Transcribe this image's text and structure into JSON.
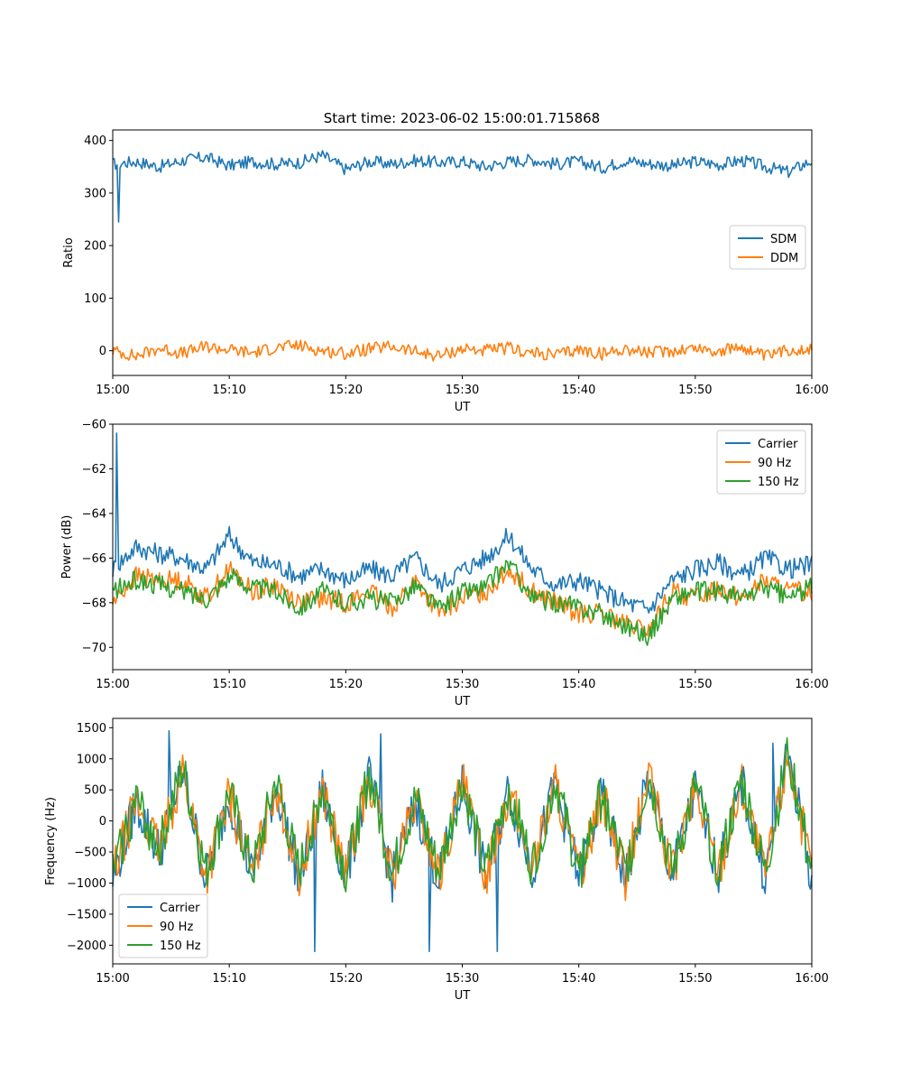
{
  "figure": {
    "title": "Start time: 2023-06-02 15:00:01.715868"
  },
  "colors": {
    "blue": "#1f77b4",
    "orange": "#ff7f0e",
    "green": "#2ca02c"
  },
  "chart_data": [
    {
      "type": "line",
      "title": "Start time: 2023-06-02 15:00:01.715868",
      "xlabel": "UT",
      "ylabel": "Ratio",
      "xlim": [
        "15:00",
        "16:00"
      ],
      "ylim": [
        -47,
        420
      ],
      "x_ticks": [
        "15:00",
        "15:10",
        "15:20",
        "15:30",
        "15:40",
        "15:50",
        "16:00"
      ],
      "y_ticks": [
        0,
        100,
        200,
        300,
        400
      ],
      "grid": false,
      "legend": "center-right",
      "x": [
        "15:00",
        "15:02",
        "15:04",
        "15:06",
        "15:08",
        "15:10",
        "15:12",
        "15:14",
        "15:16",
        "15:18",
        "15:20",
        "15:22",
        "15:24",
        "15:26",
        "15:28",
        "15:30",
        "15:32",
        "15:34",
        "15:36",
        "15:38",
        "15:40",
        "15:42",
        "15:44",
        "15:46",
        "15:48",
        "15:50",
        "15:52",
        "15:54",
        "15:56",
        "15:58",
        "16:00"
      ],
      "series": [
        {
          "name": "SDM",
          "color": "blue",
          "values": [
            355,
            360,
            350,
            362,
            368,
            352,
            360,
            355,
            358,
            372,
            345,
            360,
            355,
            362,
            358,
            360,
            350,
            360,
            364,
            355,
            360,
            348,
            362,
            356,
            352,
            360,
            354,
            362,
            350,
            340,
            362
          ],
          "notes": [
            {
              "x": "15:00:30",
              "y": 245
            }
          ]
        },
        {
          "name": "DDM",
          "color": "orange",
          "values": [
            0,
            -10,
            5,
            -5,
            8,
            2,
            -4,
            6,
            10,
            0,
            -5,
            3,
            8,
            -2,
            -10,
            4,
            0,
            5,
            -5,
            -8,
            2,
            -6,
            4,
            -4,
            0,
            6,
            -2,
            8,
            -12,
            2,
            4
          ]
        }
      ]
    },
    {
      "type": "line",
      "xlabel": "UT",
      "ylabel": "Power (dB)",
      "xlim": [
        "15:00",
        "16:00"
      ],
      "ylim": [
        -71,
        -60
      ],
      "x_ticks": [
        "15:00",
        "15:10",
        "15:20",
        "15:30",
        "15:40",
        "15:50",
        "16:00"
      ],
      "y_ticks": [
        -70,
        -68,
        -66,
        -64,
        -62,
        -60
      ],
      "grid": false,
      "legend": "top-right",
      "x": [
        "15:00",
        "15:02",
        "15:04",
        "15:06",
        "15:08",
        "15:10",
        "15:12",
        "15:14",
        "15:16",
        "15:18",
        "15:20",
        "15:22",
        "15:24",
        "15:26",
        "15:28",
        "15:30",
        "15:32",
        "15:34",
        "15:36",
        "15:38",
        "15:40",
        "15:42",
        "15:44",
        "15:46",
        "15:48",
        "15:50",
        "15:52",
        "15:54",
        "15:56",
        "15:58",
        "16:00"
      ],
      "series": [
        {
          "name": "Carrier",
          "color": "blue",
          "values": [
            -66.5,
            -65.5,
            -65.8,
            -66.0,
            -66.5,
            -65.0,
            -66.2,
            -66.3,
            -66.8,
            -66.5,
            -67.0,
            -66.5,
            -66.8,
            -66.0,
            -67.2,
            -66.5,
            -66.0,
            -65.0,
            -66.5,
            -67.2,
            -67.0,
            -67.5,
            -68.0,
            -68.3,
            -67.0,
            -66.5,
            -66.2,
            -66.8,
            -66.0,
            -66.5,
            -66.3
          ],
          "notes": [
            {
              "x": "15:00:20",
              "y": -60.4
            }
          ]
        },
        {
          "name": "90 Hz",
          "color": "orange",
          "values": [
            -68.0,
            -66.8,
            -67.0,
            -67.0,
            -67.8,
            -66.5,
            -67.5,
            -67.2,
            -68.0,
            -67.8,
            -68.0,
            -67.5,
            -68.2,
            -67.0,
            -68.5,
            -67.8,
            -67.5,
            -66.5,
            -67.5,
            -68.0,
            -68.5,
            -68.5,
            -69.0,
            -69.3,
            -67.5,
            -67.8,
            -67.3,
            -67.8,
            -67.0,
            -67.5,
            -67.5
          ]
        },
        {
          "name": "150 Hz",
          "color": "green",
          "values": [
            -67.5,
            -67.0,
            -67.2,
            -67.5,
            -67.8,
            -66.8,
            -67.3,
            -67.5,
            -68.2,
            -67.5,
            -68.0,
            -67.8,
            -68.0,
            -67.2,
            -68.3,
            -67.5,
            -67.3,
            -66.2,
            -67.8,
            -68.0,
            -68.2,
            -68.5,
            -69.0,
            -69.5,
            -67.8,
            -67.5,
            -67.5,
            -67.8,
            -67.3,
            -67.8,
            -67.3
          ]
        }
      ]
    },
    {
      "type": "line",
      "xlabel": "UT",
      "ylabel": "Frequency (Hz)",
      "xlim": [
        "15:00",
        "16:00"
      ],
      "ylim": [
        -2300,
        1650
      ],
      "x_ticks": [
        "15:00",
        "15:10",
        "15:20",
        "15:30",
        "15:40",
        "15:50",
        "16:00"
      ],
      "y_ticks": [
        -2000,
        -1500,
        -1000,
        -500,
        0,
        500,
        1000,
        1500
      ],
      "grid": false,
      "legend": "bottom-left",
      "x": [
        "15:00",
        "15:02",
        "15:04",
        "15:06",
        "15:08",
        "15:10",
        "15:12",
        "15:14",
        "15:16",
        "15:18",
        "15:20",
        "15:22",
        "15:24",
        "15:26",
        "15:28",
        "15:30",
        "15:32",
        "15:34",
        "15:36",
        "15:38",
        "15:40",
        "15:42",
        "15:44",
        "15:46",
        "15:48",
        "15:50",
        "15:52",
        "15:54",
        "15:56",
        "15:58",
        "16:00"
      ],
      "series": [
        {
          "name": "Carrier",
          "color": "blue",
          "values": [
            -950,
            300,
            -500,
            800,
            -950,
            400,
            -900,
            600,
            -950,
            500,
            -900,
            700,
            -950,
            300,
            -950,
            600,
            -900,
            500,
            -800,
            600,
            -900,
            400,
            -950,
            700,
            -900,
            500,
            -800,
            600,
            -900,
            1100,
            -950
          ],
          "notes": [
            {
              "x": "15:17:20",
              "y": -2100
            },
            {
              "x": "15:27:10",
              "y": -2100
            },
            {
              "x": "15:33:00",
              "y": -2100
            },
            {
              "x": "15:04:50",
              "y": 1450
            },
            {
              "x": "15:23:00",
              "y": 1400
            },
            {
              "x": "15:56:40",
              "y": 1250
            }
          ]
        },
        {
          "name": "90 Hz",
          "color": "orange",
          "values": [
            -900,
            320,
            -480,
            820,
            -900,
            420,
            -880,
            620,
            -900,
            520,
            -880,
            720,
            -900,
            320,
            -900,
            620,
            -880,
            520,
            -780,
            620,
            -880,
            420,
            -900,
            720,
            -880,
            520,
            -780,
            620,
            -880,
            1120,
            -900
          ]
        },
        {
          "name": "150 Hz",
          "color": "green",
          "values": [
            -850,
            350,
            -450,
            850,
            -850,
            450,
            -850,
            650,
            -850,
            550,
            -850,
            750,
            -850,
            350,
            -850,
            650,
            -850,
            550,
            -750,
            650,
            -850,
            450,
            -850,
            750,
            -850,
            550,
            -750,
            650,
            -850,
            1150,
            -850
          ]
        }
      ]
    }
  ]
}
